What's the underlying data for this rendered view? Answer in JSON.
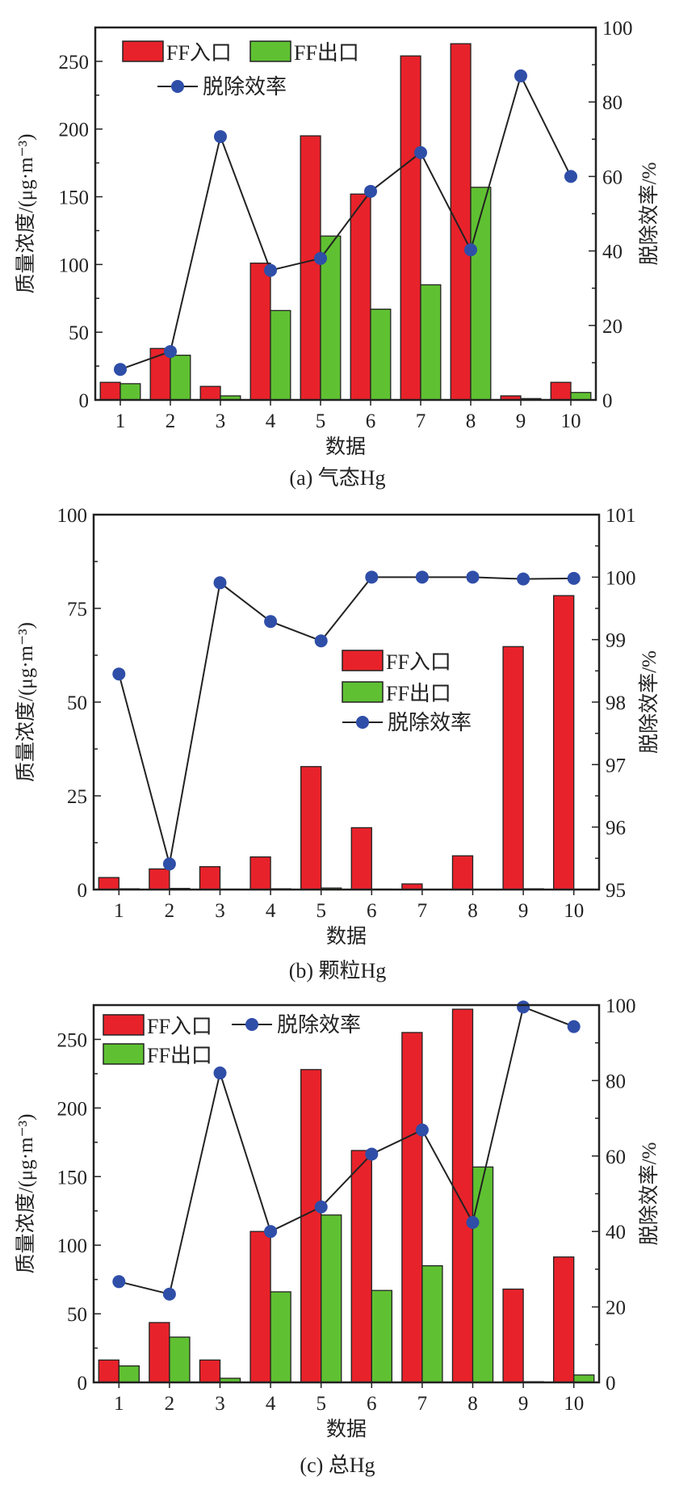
{
  "colors": {
    "inlet": "#e8222a",
    "outlet": "#5fc132",
    "efficiency": "#2f4ea8",
    "line": "#222222"
  },
  "chart_data": [
    {
      "type": "bar+line",
      "caption": "(a) 气态Hg",
      "xlabel": "数据",
      "ylabel": "质量浓度/(μg·m⁻³)",
      "y2label": "脱除效率/%",
      "categories": [
        "1",
        "2",
        "3",
        "4",
        "5",
        "6",
        "7",
        "8",
        "9",
        "10"
      ],
      "ylim": [
        0,
        275
      ],
      "yticks": [
        0,
        50,
        100,
        150,
        200,
        250
      ],
      "y2lim": [
        0,
        100
      ],
      "y2ticks": [
        0,
        20,
        40,
        60,
        80,
        100
      ],
      "legend": "top-left",
      "series": [
        {
          "name": "FF入口",
          "axis": "left",
          "kind": "bar",
          "values": [
            13,
            38,
            10,
            101,
            195,
            152,
            254,
            263,
            3,
            13
          ]
        },
        {
          "name": "FF出口",
          "axis": "left",
          "kind": "bar",
          "values": [
            12,
            33,
            3,
            66,
            121,
            67,
            85,
            157,
            1,
            5.5
          ]
        },
        {
          "name": "脱除效率",
          "axis": "right",
          "kind": "line",
          "values": [
            8.2,
            13,
            70.7,
            34.8,
            38,
            56,
            66.4,
            40.3,
            87,
            60
          ]
        }
      ]
    },
    {
      "type": "bar+line",
      "caption": "(b) 颗粒Hg",
      "xlabel": "数据",
      "ylabel": "质量浓度/(μg·m⁻³)",
      "y2label": "脱除效率/%",
      "categories": [
        "1",
        "2",
        "3",
        "4",
        "5",
        "6",
        "7",
        "8",
        "9",
        "10"
      ],
      "ylim": [
        0,
        100
      ],
      "yticks": [
        0,
        25,
        50,
        75,
        100
      ],
      "y2lim": [
        95,
        101
      ],
      "y2ticks": [
        95,
        96,
        97,
        98,
        99,
        100,
        101
      ],
      "legend": "center",
      "series": [
        {
          "name": "FF入口",
          "axis": "left",
          "kind": "bar",
          "values": [
            3.2,
            5.5,
            6.1,
            8.7,
            32.8,
            16.5,
            1.5,
            9,
            64.8,
            78.4
          ]
        },
        {
          "name": "FF出口",
          "axis": "left",
          "kind": "bar",
          "values": [
            0.2,
            0.3,
            0.1,
            0.2,
            0.4,
            0.1,
            0.05,
            0.05,
            0.2,
            0.1
          ]
        },
        {
          "name": "脱除效率",
          "axis": "right",
          "kind": "line",
          "values": [
            98.45,
            95.41,
            99.91,
            99.29,
            98.98,
            100,
            100,
            100,
            99.97,
            99.98
          ]
        }
      ]
    },
    {
      "type": "bar+line",
      "caption": "(c) 总Hg",
      "xlabel": "数据",
      "ylabel": "质量浓度/(μg·m⁻³)",
      "y2label": "脱除效率/%",
      "categories": [
        "1",
        "2",
        "3",
        "4",
        "5",
        "6",
        "7",
        "8",
        "9",
        "10"
      ],
      "ylim": [
        0,
        275
      ],
      "yticks": [
        0,
        50,
        100,
        150,
        200,
        250
      ],
      "y2lim": [
        0,
        100
      ],
      "y2ticks": [
        0,
        20,
        40,
        60,
        80,
        100
      ],
      "legend": "top-left",
      "series": [
        {
          "name": "FF入口",
          "axis": "left",
          "kind": "bar",
          "values": [
            16.3,
            43.6,
            16.3,
            110,
            228,
            169,
            255,
            272,
            68,
            91.4
          ]
        },
        {
          "name": "FF出口",
          "axis": "left",
          "kind": "bar",
          "values": [
            12,
            33,
            3,
            66,
            122,
            67,
            85,
            157,
            0.5,
            5.4
          ]
        },
        {
          "name": "脱除效率",
          "axis": "right",
          "kind": "line",
          "values": [
            26.7,
            23.4,
            82,
            40,
            46.5,
            60.5,
            66.9,
            42.4,
            99.5,
            94.3
          ]
        }
      ]
    }
  ]
}
